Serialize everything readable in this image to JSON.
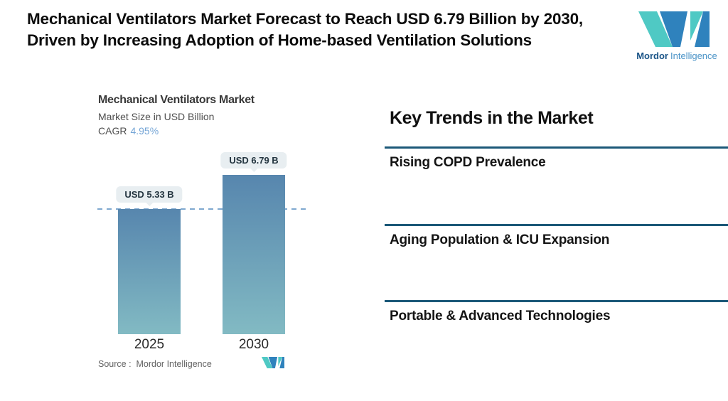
{
  "header": {
    "title": "Mechanical Ventilators Market Forecast to Reach USD 6.79 Billion by 2030, Driven by Increasing Adoption of Home-based Ventilation Solutions"
  },
  "brand": {
    "name_bold": "Mordor",
    "name_light": "Intelligence",
    "teal": "#4fc9c4",
    "blue": "#2f82bd"
  },
  "chart_data": {
    "type": "bar",
    "title": "Mechanical Ventilators Market",
    "subtitle": "Market Size in USD Billion",
    "cagr_label": "CAGR",
    "cagr_value": "4.95%",
    "categories": [
      "2025",
      "2030"
    ],
    "values": [
      5.33,
      6.79
    ],
    "value_labels": [
      "USD 5.33 B",
      "USD 6.79 B"
    ],
    "unit": "USD Billion",
    "ylim": [
      0,
      7.5
    ],
    "grid": false,
    "legend": false,
    "reference_line": {
      "value": 5.33,
      "style": "dashed"
    },
    "source": "Source :  Mordor Intelligence",
    "colors": {
      "bar_top": "#5786ae",
      "bar_bottom": "#82bac3",
      "dashed_line": "#7fa8d0",
      "label_pill_bg": "#e8eef1",
      "cagr_value": "#74a5d6"
    }
  },
  "trends": {
    "heading": "Key Trends in the Market",
    "items": [
      "Rising COPD Prevalence",
      "Aging Population & ICU Expansion",
      "Portable & Advanced Technologies"
    ],
    "rule_color": "#1b5878"
  }
}
